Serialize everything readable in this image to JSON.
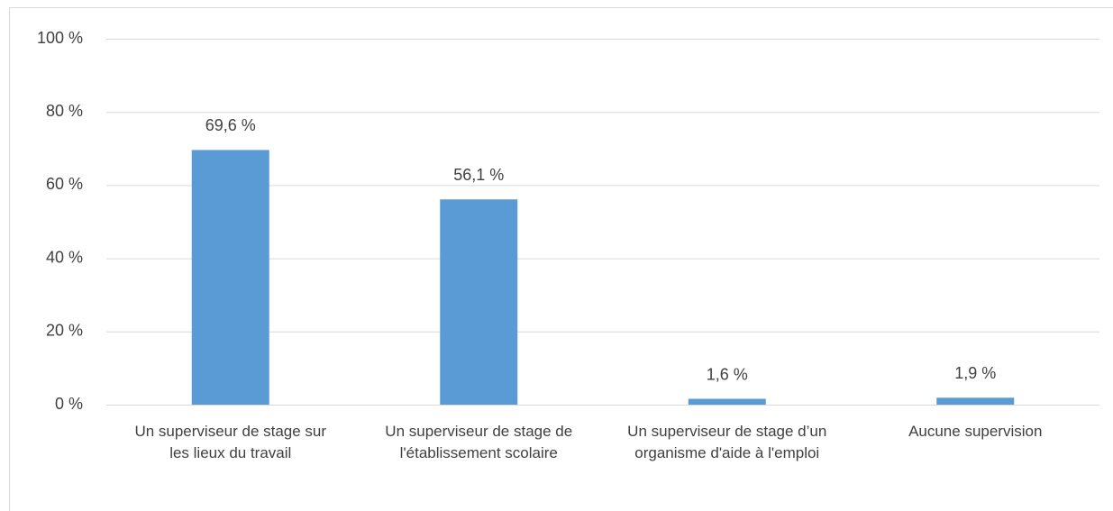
{
  "chart_data": {
    "type": "bar",
    "categories": [
      "Un superviseur de stage sur les lieux du travail",
      "Un superviseur de stage de l'établissement scolaire",
      "Un superviseur de stage d’un organisme d'aide à l'emploi",
      "Aucune supervision"
    ],
    "values": [
      69.6,
      56.1,
      1.6,
      1.9
    ],
    "value_labels": [
      "69,6 %",
      "56,1 %",
      "1,6 %",
      "1,9 %"
    ],
    "color": "#5b9bd5",
    "ylim": [
      0,
      100
    ],
    "yticks": [
      {
        "value": 0,
        "label": "0 %"
      },
      {
        "value": 20,
        "label": "20 %"
      },
      {
        "value": 40,
        "label": "40 %"
      },
      {
        "value": 60,
        "label": "60 %"
      },
      {
        "value": 80,
        "label": "80 %"
      },
      {
        "value": 100,
        "label": "100 %"
      }
    ],
    "grid": true
  }
}
